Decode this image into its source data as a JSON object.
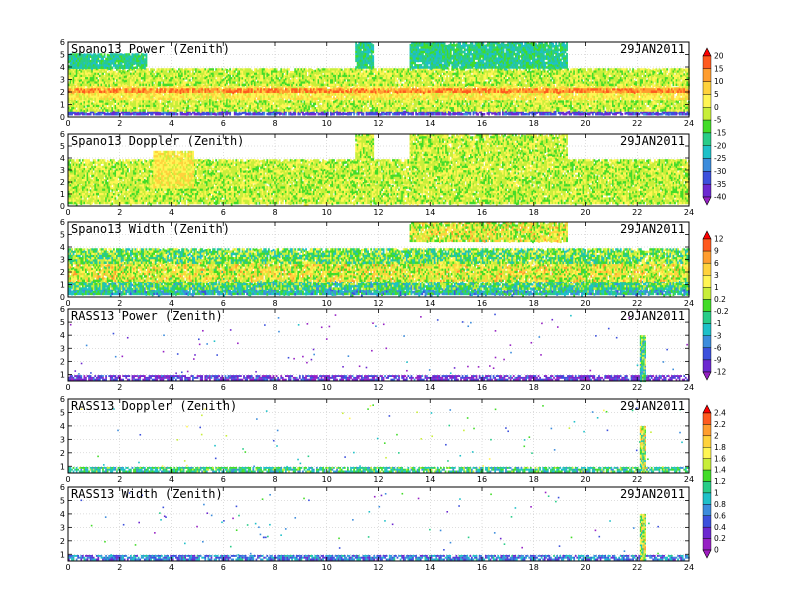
{
  "chart_data": {
    "type": "heatmap",
    "x_axis": {
      "range": [
        0,
        24
      ],
      "ticks": [
        0,
        2,
        4,
        6,
        8,
        10,
        12,
        14,
        16,
        18,
        20,
        22,
        24
      ]
    },
    "panels": [
      {
        "title": "Spano13 Power (Zenith)",
        "date": "29JAN2011",
        "ylim": [
          0,
          6
        ],
        "y_ticks": [
          0,
          1,
          2,
          3,
          4,
          5,
          6
        ],
        "colorbar": "power"
      },
      {
        "title": "Spano13 Doppler (Zenith)",
        "date": "29JAN2011",
        "ylim": [
          0,
          6
        ],
        "y_ticks": [
          0,
          1,
          2,
          3,
          4,
          5,
          6
        ],
        "colorbar": "power"
      },
      {
        "title": "Spano13 Width (Zenith)",
        "date": "29JAN2011",
        "ylim": [
          0,
          6
        ],
        "y_ticks": [
          0,
          1,
          2,
          3,
          4,
          5,
          6
        ],
        "colorbar": "width"
      },
      {
        "title": "RASS13 Power (Zenith)",
        "date": "29JAN2011",
        "ylim": [
          0.5,
          6
        ],
        "y_ticks": [
          1,
          2,
          3,
          4,
          5,
          6
        ],
        "colorbar": "width"
      },
      {
        "title": "RASS13 Doppler (Zenith)",
        "date": "29JAN2011",
        "ylim": [
          0.5,
          6
        ],
        "y_ticks": [
          1,
          2,
          3,
          4,
          5,
          6
        ],
        "colorbar": "doppler"
      },
      {
        "title": "RASS13 Width (Zenith)",
        "date": "29JAN2011",
        "ylim": [
          0.5,
          6
        ],
        "y_ticks": [
          1,
          2,
          3,
          4,
          5,
          6
        ],
        "colorbar": "doppler"
      }
    ],
    "colorbars": {
      "power": {
        "labels": [
          "20",
          "15",
          "10",
          "5",
          "0",
          "-5",
          "-15",
          "-20",
          "-25",
          "-30",
          "-35",
          "-40"
        ],
        "colors": [
          "#ff0000",
          "#ff5a1e",
          "#ff9d2e",
          "#ffd23c",
          "#fff554",
          "#c8ee3a",
          "#42dc28",
          "#28cc88",
          "#1ec0c8",
          "#3c8cdc",
          "#3c50dc",
          "#6c28d0",
          "#9620c4"
        ]
      },
      "width": {
        "labels": [
          "12",
          "9",
          "6",
          "3",
          "1",
          "0.2",
          "-0.2",
          "-1",
          "-3",
          "-6",
          "-9",
          "-12"
        ],
        "colors": [
          "#ff0000",
          "#ff5a1e",
          "#ff9d2e",
          "#ffd23c",
          "#fff554",
          "#c8ee3a",
          "#42dc28",
          "#28cc88",
          "#1ec0c8",
          "#3c8cdc",
          "#3c50dc",
          "#6c28d0",
          "#9620c4"
        ]
      },
      "doppler": {
        "labels": [
          "2.4",
          "2.2",
          "2",
          "1.8",
          "1.6",
          "1.4",
          "1.2",
          "1",
          "0.8",
          "0.6",
          "0.4",
          "0.2",
          "0"
        ],
        "colors": [
          "#ff0000",
          "#ff5a1e",
          "#ff9d2e",
          "#ffd23c",
          "#fff554",
          "#c8ee3a",
          "#42dc28",
          "#28cc88",
          "#1ec0c8",
          "#3c8cdc",
          "#3c50dc",
          "#6c28d0",
          "#9620c4",
          "#a01cc0"
        ]
      }
    },
    "series": [
      {
        "panel": 0,
        "field": "power",
        "color_levels": [
          -30,
          -15,
          -5,
          0,
          5,
          10
        ],
        "layers": [
          {
            "x": [
              0,
              24
            ],
            "y": [
              0.3,
              0.5
            ],
            "level": -30
          },
          {
            "x": [
              0,
              24
            ],
            "y": [
              0.5,
              1.5
            ],
            "level": -5
          },
          {
            "x": [
              0,
              24
            ],
            "y": [
              1.5,
              2.6
            ],
            "level": 0
          },
          {
            "x": [
              0,
              24
            ],
            "y": [
              2.0,
              2.3
            ],
            "level": 10
          },
          {
            "x": [
              0,
              24
            ],
            "y": [
              2.6,
              3.9
            ],
            "level": -5
          },
          {
            "x": [
              0,
              3
            ],
            "y": [
              3.9,
              5.1
            ],
            "level": -15
          },
          {
            "x": [
              11.1,
              11.8
            ],
            "y": [
              3.9,
              6.0
            ],
            "level": -15
          },
          {
            "x": [
              13.2,
              19.3
            ],
            "y": [
              3.9,
              6.0
            ],
            "level": -15
          }
        ]
      },
      {
        "panel": 1,
        "field": "doppler",
        "color_levels": [
          -15,
          -5,
          0
        ],
        "layers": [
          {
            "x": [
              0,
              24
            ],
            "y": [
              0.2,
              2.0
            ],
            "level": -5
          },
          {
            "x": [
              0,
              24
            ],
            "y": [
              2.0,
              3.9
            ],
            "level": -5
          },
          {
            "x": [
              3.3,
              4.8
            ],
            "y": [
              1.5,
              4.6
            ],
            "level": 0
          },
          {
            "x": [
              11.1,
              11.8
            ],
            "y": [
              3.9,
              6.0
            ],
            "level": -5
          },
          {
            "x": [
              13.2,
              19.3
            ],
            "y": [
              3.9,
              6.0
            ],
            "level": -5
          }
        ]
      },
      {
        "panel": 2,
        "field": "width",
        "color_levels": [
          -3,
          -1,
          0.2,
          3,
          9
        ],
        "layers": [
          {
            "x": [
              0,
              24
            ],
            "y": [
              0.2,
              0.7
            ],
            "level": -3
          },
          {
            "x": [
              0,
              24
            ],
            "y": [
              0.7,
              1.3
            ],
            "level": -1
          },
          {
            "x": [
              0,
              24
            ],
            "y": [
              1.3,
              2.8
            ],
            "level": 3
          },
          {
            "x": [
              0,
              24
            ],
            "y": [
              2.8,
              3.9
            ],
            "level": 0.2
          },
          {
            "x": [
              13.2,
              19.3
            ],
            "y": [
              4.5,
              6.0
            ],
            "level": 3
          }
        ]
      },
      {
        "panel": 3,
        "field": "rass_power",
        "layers": [
          {
            "x": [
              0,
              24
            ],
            "y": [
              0.55,
              0.95
            ],
            "level": -9
          },
          {
            "x": [
              22.1,
              22.3
            ],
            "y": [
              0.55,
              4.0
            ],
            "level": -1
          }
        ]
      },
      {
        "panel": 4,
        "field": "rass_doppler",
        "layers": [
          {
            "x": [
              0,
              24
            ],
            "y": [
              0.55,
              0.95
            ],
            "level": 1
          },
          {
            "x": [
              22.1,
              22.3
            ],
            "y": [
              0.55,
              4.0
            ],
            "level": 1.4
          }
        ]
      },
      {
        "panel": 5,
        "field": "rass_width",
        "layers": [
          {
            "x": [
              0,
              24
            ],
            "y": [
              0.55,
              0.95
            ],
            "level": 0.6
          },
          {
            "x": [
              22.1,
              22.3
            ],
            "y": [
              0.55,
              4.0
            ],
            "level": 1.4
          }
        ]
      }
    ]
  }
}
